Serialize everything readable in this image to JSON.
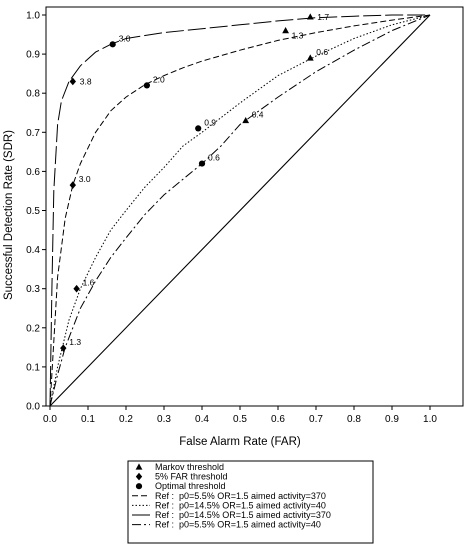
{
  "chart_data": {
    "type": "line",
    "xlabel": "False Alarm Rate (FAR)",
    "ylabel": "Successful Detection Rate (SDR)",
    "xlim": [
      0,
      1.0
    ],
    "ylim": [
      0,
      1.0
    ],
    "xticks": [
      "0.0",
      "0.1",
      "0.2",
      "0.3",
      "0.4",
      "0.5",
      "0.6",
      "0.7",
      "0.8",
      "0.9",
      "1.0"
    ],
    "yticks": [
      "0.0",
      "0.1",
      "0.2",
      "0.3",
      "0.4",
      "0.5",
      "0.6",
      "0.7",
      "0.8",
      "0.9",
      "1.0"
    ],
    "legend_position": "bottom",
    "markers": [
      {
        "label": "Markov threshold",
        "symbol": "triangle"
      },
      {
        "label": "5% FAR threshold",
        "symbol": "diamond"
      },
      {
        "label": "Optimal threshold",
        "symbol": "circle"
      }
    ],
    "series": [
      {
        "name": "Ref :  p0=5.5% OR=1.5 aimed activity=370",
        "dash": "6,3",
        "x": [
          0,
          0.02,
          0.04,
          0.06,
          0.08,
          0.12,
          0.16,
          0.2,
          0.25,
          0.3,
          0.35,
          0.4,
          0.5,
          0.6,
          0.7,
          0.8,
          0.9,
          1.0
        ],
        "y": [
          0,
          0.33,
          0.48,
          0.565,
          0.62,
          0.7,
          0.755,
          0.79,
          0.822,
          0.845,
          0.865,
          0.882,
          0.91,
          0.935,
          0.955,
          0.972,
          0.987,
          1.0
        ]
      },
      {
        "name": "Ref :  p0=14.5% OR=1.5 aimed activity=40",
        "dash": "1.5,2",
        "x": [
          0,
          0.02,
          0.05,
          0.08,
          0.12,
          0.16,
          0.2,
          0.25,
          0.3,
          0.35,
          0.4,
          0.5,
          0.6,
          0.7,
          0.8,
          0.9,
          1.0
        ],
        "y": [
          0,
          0.1,
          0.22,
          0.3,
          0.38,
          0.45,
          0.5,
          0.56,
          0.61,
          0.665,
          0.7,
          0.775,
          0.845,
          0.895,
          0.94,
          0.975,
          1.0
        ]
      },
      {
        "name": "Ref :  p0=14.5% OR=1.5 aimed activity=370",
        "dash": "18,4",
        "x": [
          0,
          0.005,
          0.01,
          0.02,
          0.03,
          0.05,
          0.08,
          0.12,
          0.16,
          0.2,
          0.3,
          0.4,
          0.5,
          0.6,
          0.7,
          0.8,
          0.9,
          1.0
        ],
        "y": [
          0,
          0.3,
          0.55,
          0.72,
          0.78,
          0.83,
          0.87,
          0.905,
          0.925,
          0.94,
          0.955,
          0.965,
          0.975,
          0.985,
          0.993,
          0.997,
          1.0,
          1.0
        ]
      },
      {
        "name": "Ref :  p0=5.5% OR=1.5 aimed activity=40",
        "dash": "9,3,2,3",
        "x": [
          0,
          0.02,
          0.04,
          0.08,
          0.12,
          0.16,
          0.2,
          0.25,
          0.3,
          0.35,
          0.4,
          0.45,
          0.5,
          0.55,
          0.6,
          0.7,
          0.8,
          0.9,
          1.0
        ],
        "y": [
          0,
          0.08,
          0.15,
          0.25,
          0.32,
          0.38,
          0.43,
          0.49,
          0.54,
          0.58,
          0.62,
          0.665,
          0.72,
          0.755,
          0.79,
          0.855,
          0.91,
          0.96,
          1.0
        ]
      }
    ],
    "reference_line": {
      "x": [
        0,
        1
      ],
      "y": [
        0,
        1
      ]
    },
    "points": [
      {
        "symbol": "triangle",
        "x": 0.685,
        "y": 0.995,
        "label": "1.7",
        "label_pos": "right"
      },
      {
        "symbol": "triangle",
        "x": 0.62,
        "y": 0.96,
        "label": "1.3",
        "label_pos": "below-right"
      },
      {
        "symbol": "triangle",
        "x": 0.685,
        "y": 0.89,
        "label": "0.6",
        "label_pos": "above-right"
      },
      {
        "symbol": "triangle",
        "x": 0.515,
        "y": 0.73,
        "label": "0.4",
        "label_pos": "above-right"
      },
      {
        "symbol": "circle",
        "x": 0.165,
        "y": 0.925,
        "label": "3.0",
        "label_pos": "above-right"
      },
      {
        "symbol": "circle",
        "x": 0.255,
        "y": 0.82,
        "label": "2.0",
        "label_pos": "above-right"
      },
      {
        "symbol": "circle",
        "x": 0.39,
        "y": 0.71,
        "label": "0.9",
        "label_pos": "above-right"
      },
      {
        "symbol": "circle",
        "x": 0.4,
        "y": 0.62,
        "label": "0.6",
        "label_pos": "above-right"
      },
      {
        "symbol": "diamond",
        "x": 0.06,
        "y": 0.83,
        "label": "3.8",
        "label_pos": "right"
      },
      {
        "symbol": "diamond",
        "x": 0.06,
        "y": 0.565,
        "label": "3.0",
        "label_pos": "above-right"
      },
      {
        "symbol": "diamond",
        "x": 0.07,
        "y": 0.3,
        "label": "1.6",
        "label_pos": "above-right"
      },
      {
        "symbol": "diamond",
        "x": 0.035,
        "y": 0.148,
        "label": "1.3",
        "label_pos": "above-right"
      }
    ]
  }
}
